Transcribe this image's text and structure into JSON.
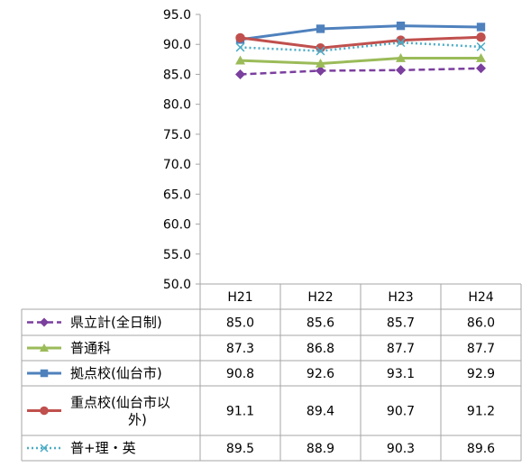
{
  "chart_data": {
    "type": "line",
    "categories": [
      "H21",
      "H22",
      "H23",
      "H24"
    ],
    "ylim": [
      50.0,
      95.0
    ],
    "y_ticks": [
      "95.0",
      "90.0",
      "85.0",
      "80.0",
      "75.0",
      "70.0",
      "65.0",
      "60.0",
      "55.0",
      "50.0"
    ],
    "y_tick_values": [
      95,
      90,
      85,
      80,
      75,
      70,
      65,
      60,
      55,
      50
    ],
    "grid": false,
    "legend": "data-table-below",
    "series": [
      {
        "name": "県立計(全日制)",
        "values": [
          85.0,
          85.6,
          85.7,
          86.0
        ],
        "labels": [
          "85.0",
          "85.6",
          "85.7",
          "86.0"
        ],
        "color": "#7B3F9E",
        "marker": "diamond",
        "dash": "dashed"
      },
      {
        "name": "普通科",
        "values": [
          87.3,
          86.8,
          87.7,
          87.7
        ],
        "labels": [
          "87.3",
          "86.8",
          "87.7",
          "87.7"
        ],
        "color": "#9BBB59",
        "marker": "triangle",
        "dash": "solid"
      },
      {
        "name": "拠点校(仙台市)",
        "values": [
          90.8,
          92.6,
          93.1,
          92.9
        ],
        "labels": [
          "90.8",
          "92.6",
          "93.1",
          "92.9"
        ],
        "color": "#4F81BD",
        "marker": "square",
        "dash": "solid"
      },
      {
        "name": "重点校(仙台市以\n外)",
        "values": [
          91.1,
          89.4,
          90.7,
          91.2
        ],
        "labels": [
          "91.1",
          "89.4",
          "90.7",
          "91.2"
        ],
        "color": "#C0504D",
        "marker": "circle",
        "dash": "solid"
      },
      {
        "name": "普+理・英",
        "values": [
          89.5,
          88.9,
          90.3,
          89.6
        ],
        "labels": [
          "89.5",
          "88.9",
          "90.3",
          "89.6"
        ],
        "color": "#4BACC6",
        "marker": "x",
        "dash": "dotted"
      }
    ]
  }
}
